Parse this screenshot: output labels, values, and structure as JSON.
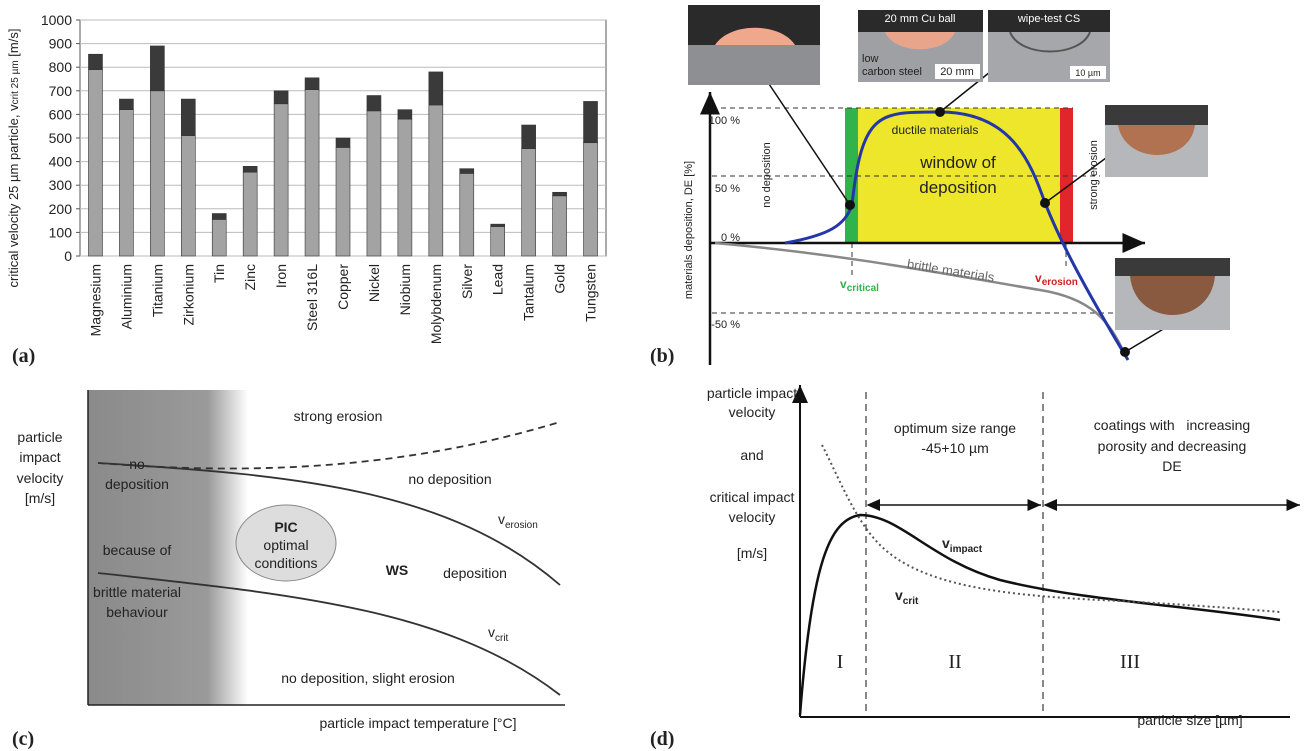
{
  "chart_data": {
    "type": "bar",
    "stacked": true,
    "panel_label": "(a)",
    "ylabel": [
      "critical velocity 25 µm particle, v",
      "crit 25 µm",
      " [m/s]"
    ],
    "categories": [
      "Magnesium",
      "Aluminium",
      "Titanium",
      "Zirkonium",
      "Tin",
      "Zinc",
      "Iron",
      "Steel 316L",
      "Copper",
      "Nickel",
      "Niobium",
      "Molybdenum",
      "Silver",
      "Lead",
      "Tantalum",
      "Gold",
      "Tungsten"
    ],
    "series": [
      {
        "color": "#a3a3a3",
        "values": [
          790,
          620,
          700,
          510,
          155,
          355,
          645,
          705,
          460,
          615,
          580,
          640,
          350,
          125,
          455,
          255,
          480
        ]
      },
      {
        "color": "#3a3a3a",
        "values": [
          65,
          45,
          190,
          155,
          25,
          25,
          55,
          50,
          40,
          65,
          40,
          140,
          20,
          10,
          100,
          15,
          175
        ]
      }
    ],
    "ylim": [
      0,
      1000
    ],
    "yticks": [
      0,
      100,
      200,
      300,
      400,
      500,
      600,
      700,
      800,
      900,
      1000
    ],
    "grid": true
  },
  "panel_b": {
    "label": "(b)",
    "y_axis_label": "materials deposition, DE [%]",
    "y_ticks": [
      "100 %",
      "50 %",
      "0 %",
      "-50 %"
    ],
    "no_deposition": "no deposition",
    "strong_erosion": "strong erosion",
    "ductile": "ductile materials",
    "window": [
      "window of",
      "deposition"
    ],
    "brittle": "brittle materials",
    "v_critical": {
      "base": "v",
      "sub": "critical"
    },
    "v_erosion": {
      "base": "v",
      "sub": "erosion"
    },
    "photo_ball": "20 mm Cu ball",
    "photo_steel": [
      "low",
      "carbon steel"
    ],
    "scale_20": "20 mm",
    "photo_wipe": "wipe-test CS",
    "scale_10": "10 µm"
  },
  "panel_c": {
    "label": "(c)",
    "y_axis_label": [
      "particle",
      "impact",
      "velocity",
      "[m/s]"
    ],
    "x_axis_label": "particle impact temperature [°C]",
    "strong_erosion": "strong erosion",
    "no_deposition": "no deposition",
    "left_region": [
      "no",
      "deposition",
      "because of",
      "brittle material",
      "behaviour"
    ],
    "pic": [
      "PIC",
      "optimal",
      "conditions"
    ],
    "ws": "WS",
    "deposition": "deposition",
    "v_erosion": {
      "base": "v",
      "sub": "erosion"
    },
    "v_crit": {
      "base": "v",
      "sub": "crit"
    },
    "bottom": "no deposition, slight erosion"
  },
  "panel_d": {
    "label": "(d)",
    "y_axis_label": [
      "particle impact",
      "velocity",
      "and",
      "critical impact",
      "velocity",
      "[m/s]"
    ],
    "x_axis_label": "particle size [µm]",
    "optimum": [
      "optimum size range",
      "-45+10 µm"
    ],
    "coatings": [
      "coatings with   increasing",
      "porosity and decreasing",
      "DE"
    ],
    "v_impact": {
      "base": "v",
      "sub": "impact"
    },
    "v_crit": {
      "base": "v",
      "sub": "crit"
    },
    "zones": [
      "I",
      "II",
      "III"
    ]
  }
}
